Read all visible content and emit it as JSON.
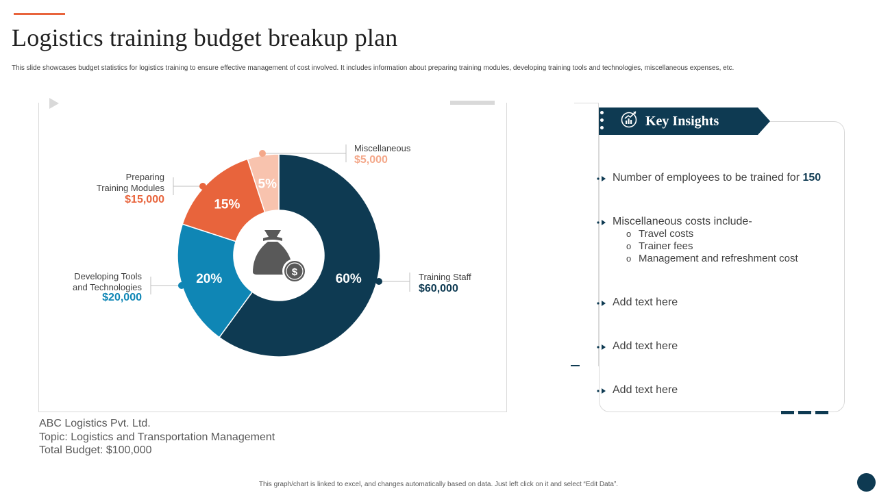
{
  "header": {
    "title": "Logistics training budget breakup plan",
    "subtitle": "This slide showcases budget statistics for logistics training to ensure effective management of cost involved. It includes information about preparing training modules,  developing training tools and technologies, miscellaneous expenses, etc."
  },
  "chart_data": {
    "type": "pie",
    "variant": "donut",
    "categories": [
      "Training Staff",
      "Developing Tools and Technologies",
      "Preparing Training Modules",
      "Miscellaneous"
    ],
    "percent_labels": [
      "60%",
      "20%",
      "15%",
      "5%"
    ],
    "values": [
      60000,
      20000,
      15000,
      5000
    ],
    "value_labels": [
      "$60,000",
      "$20,000",
      "$15,000",
      "$5,000"
    ],
    "colors": [
      "#0e3a52",
      "#0f86b5",
      "#e8643c",
      "#f8c3ae"
    ],
    "center_icon": "money-bag-icon"
  },
  "chart_labels": {
    "misc": {
      "name": "Miscellaneous",
      "value": "$5,000"
    },
    "modules": {
      "line1": "Preparing",
      "line2": "Training Modules",
      "value": "$15,000"
    },
    "tools": {
      "line1": "Developing  Tools",
      "line2": "and Technologies",
      "value": "$20,000"
    },
    "staff": {
      "name": "Training  Staff",
      "value": "$60,000"
    }
  },
  "company": {
    "name": "ABC Logistics Pvt. Ltd.",
    "topic": "Topic: Logistics and Transportation  Management",
    "budget": "Total Budget: $100,000"
  },
  "insights": {
    "title": "Key Insights",
    "icon": "growth-chart-icon",
    "item1_text": "Number of employees to be trained for ",
    "item1_value": "150",
    "item2_text": "Miscellaneous costs include-",
    "sub_items": [
      "Travel costs",
      "Trainer fees",
      "Management and refreshment cost"
    ],
    "item3": "Add text here",
    "item4": "Add text here",
    "item5": "Add text here"
  },
  "footer": {
    "note": "This graph/chart is linked to excel, and changes automatically based on data.  Just left click on it and select “Edit Data”."
  },
  "colors": {
    "accent": "#e8643c",
    "dark": "#0e3a52",
    "blue": "#0f86b5",
    "light": "#f8c3ae"
  }
}
